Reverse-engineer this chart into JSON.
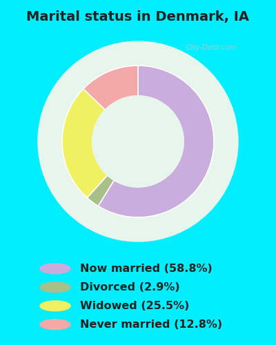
{
  "title": "Marital status in Denmark, IA",
  "slices": [
    58.8,
    2.9,
    25.5,
    12.8
  ],
  "labels": [
    "Now married (58.8%)",
    "Divorced (2.9%)",
    "Widowed (25.5%)",
    "Never married (12.8%)"
  ],
  "colors": [
    "#c9aedd",
    "#a8bf8a",
    "#f0f060",
    "#f4a8a8"
  ],
  "startangle": 90,
  "bg_cyan": "#00eeff",
  "bg_chart_panel": "#e8f5ec",
  "donut_hole_ratio": 0.6,
  "outer_r": 1.1,
  "title_fontsize": 14,
  "title_color": "#222222",
  "legend_fontsize": 11.5,
  "watermark": "City-Data.com"
}
